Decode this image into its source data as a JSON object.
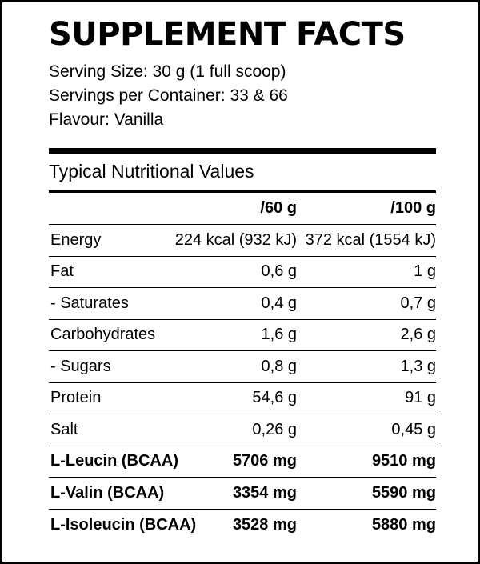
{
  "title": "SUPPLEMENT FACTS",
  "info": {
    "serving_size": "Serving Size: 30 g (1 full scoop)",
    "servings_per_container": "Servings per Container: 33 & 66",
    "flavour": "Flavour: Vanilla"
  },
  "section_heading": "Typical Nutritional Values",
  "columns": [
    "/60 g",
    "/100 g"
  ],
  "rows": [
    {
      "name": "Energy",
      "per60": "224 kcal (932 kJ)",
      "per100": "372 kcal (1554 kJ)"
    },
    {
      "name": "Fat",
      "per60": "0,6 g",
      "per100": "1 g"
    },
    {
      "name": "- Saturates",
      "per60": "0,4 g",
      "per100": "0,7 g"
    },
    {
      "name": "Carbohydrates",
      "per60": "1,6 g",
      "per100": "2,6 g"
    },
    {
      "name": "- Sugars",
      "per60": "0,8 g",
      "per100": "1,3 g"
    },
    {
      "name": "Protein",
      "per60": "54,6 g",
      "per100": "91 g"
    },
    {
      "name": "Salt",
      "per60": "0,26 g",
      "per100": "0,45 g"
    },
    {
      "name": "L-Leucin (BCAA)",
      "per60": "5706 mg",
      "per100": "9510 mg"
    },
    {
      "name": "L-Valin (BCAA)",
      "per60": "3354 mg",
      "per100": "5590 mg"
    },
    {
      "name": "L-Isoleucin (BCAA)",
      "per60": "3528 mg",
      "per100": "5880 mg"
    }
  ]
}
